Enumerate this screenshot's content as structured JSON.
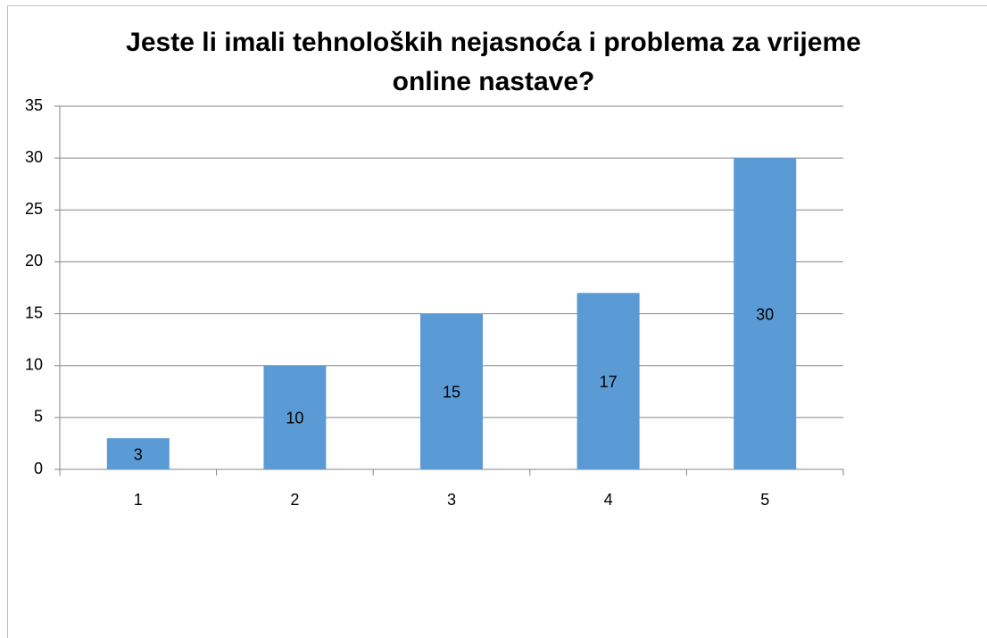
{
  "chart_data": {
    "type": "bar",
    "title": "Jeste li imali tehnoloških nejasnoća i problema za vrijeme online nastave?",
    "categories": [
      "1",
      "2",
      "3",
      "4",
      "5"
    ],
    "values": [
      3,
      10,
      15,
      17,
      30
    ],
    "color": "#5b9bd5",
    "ylim": [
      0,
      35
    ],
    "yticks": [
      0,
      5,
      10,
      15,
      20,
      25,
      30,
      35
    ],
    "grid": true
  }
}
